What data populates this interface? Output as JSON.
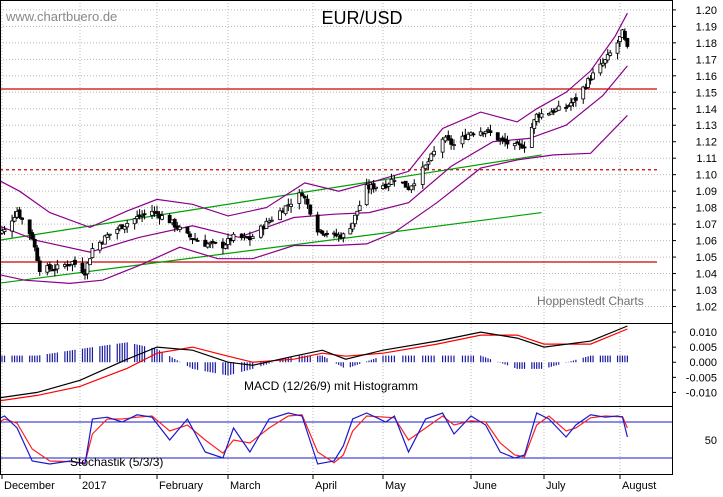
{
  "watermark": "www.chartbuero.de",
  "credit": "Hoppenstedt Charts",
  "colors": {
    "candle": "#000000",
    "bollinger": "#8b008b",
    "trend": "#00a000",
    "horizontal": "#cc0000",
    "macd_line": "#000000",
    "signal_line": "#ff0000",
    "histogram": "#1a1aa0",
    "stoch_k": "#1a1acc",
    "stoch_d": "#ff2020",
    "stoch_level": "#1a1acc",
    "grid": "#b8b8b8"
  },
  "chart_data": [
    {
      "type": "candlestick",
      "title": "EUR/USD",
      "x_labels": [
        "December",
        "2017",
        "February",
        "March",
        "April",
        "May",
        "June",
        "July",
        "August"
      ],
      "y_ticks": [
        1.02,
        1.03,
        1.04,
        1.05,
        1.06,
        1.07,
        1.08,
        1.09,
        1.1,
        1.11,
        1.12,
        1.13,
        1.14,
        1.15,
        1.16,
        1.17,
        1.18,
        1.19,
        1.2
      ],
      "ylim": [
        1.01,
        1.206
      ],
      "grid": true,
      "horizontal_lines": [
        {
          "value": 1.152,
          "style": "solid"
        },
        {
          "value": 1.103,
          "style": "dashed"
        },
        {
          "value": 1.047,
          "style": "solid"
        }
      ],
      "trend_lines": [
        {
          "from": [
            "2016-11-29",
            1.06
          ],
          "to": [
            "2017-06-30",
            1.112
          ]
        },
        {
          "from": [
            "2016-11-29",
            1.034
          ],
          "to": [
            "2017-06-30",
            1.077
          ]
        }
      ],
      "close_anchors": [
        [
          "2016-11-28",
          1.064
        ],
        [
          "2016-12-02",
          1.066
        ],
        [
          "2016-12-07",
          1.078
        ],
        [
          "2016-12-13",
          1.062
        ],
        [
          "2016-12-16",
          1.043
        ],
        [
          "2016-12-22",
          1.043
        ],
        [
          "2016-12-29",
          1.047
        ],
        [
          "2017-01-03",
          1.041
        ],
        [
          "2017-01-06",
          1.055
        ],
        [
          "2017-01-12",
          1.063
        ],
        [
          "2017-01-18",
          1.069
        ],
        [
          "2017-01-24",
          1.074
        ],
        [
          "2017-01-30",
          1.078
        ],
        [
          "2017-02-06",
          1.072
        ],
        [
          "2017-02-13",
          1.063
        ],
        [
          "2017-02-20",
          1.058
        ],
        [
          "2017-02-27",
          1.057
        ],
        [
          "2017-03-03",
          1.062
        ],
        [
          "2017-03-09",
          1.061
        ],
        [
          "2017-03-16",
          1.072
        ],
        [
          "2017-03-23",
          1.082
        ],
        [
          "2017-03-28",
          1.089
        ],
        [
          "2017-04-03",
          1.067
        ],
        [
          "2017-04-10",
          1.063
        ],
        [
          "2017-04-14",
          1.063
        ],
        [
          "2017-04-18",
          1.071
        ],
        [
          "2017-04-24",
          1.092
        ],
        [
          "2017-05-02",
          1.094
        ],
        [
          "2017-05-05",
          1.098
        ],
        [
          "2017-05-10",
          1.092
        ],
        [
          "2017-05-16",
          1.105
        ],
        [
          "2017-05-22",
          1.122
        ],
        [
          "2017-05-26",
          1.118
        ],
        [
          "2017-06-01",
          1.126
        ],
        [
          "2017-06-07",
          1.127
        ],
        [
          "2017-06-13",
          1.121
        ],
        [
          "2017-06-19",
          1.117
        ],
        [
          "2017-06-23",
          1.118
        ],
        [
          "2017-06-28",
          1.136
        ],
        [
          "2017-07-03",
          1.138
        ],
        [
          "2017-07-10",
          1.141
        ],
        [
          "2017-07-14",
          1.146
        ],
        [
          "2017-07-20",
          1.159
        ],
        [
          "2017-07-26",
          1.169
        ],
        [
          "2017-07-31",
          1.18
        ],
        [
          "2017-08-02",
          1.186
        ],
        [
          "2017-08-04",
          1.176
        ]
      ],
      "upper_band_anchors": [
        [
          "2016-11-28",
          1.098
        ],
        [
          "2016-12-08",
          1.09
        ],
        [
          "2016-12-20",
          1.077
        ],
        [
          "2017-01-05",
          1.068
        ],
        [
          "2017-01-20",
          1.078
        ],
        [
          "2017-02-01",
          1.085
        ],
        [
          "2017-02-15",
          1.082
        ],
        [
          "2017-03-01",
          1.075
        ],
        [
          "2017-03-15",
          1.08
        ],
        [
          "2017-03-29",
          1.095
        ],
        [
          "2017-04-12",
          1.09
        ],
        [
          "2017-04-25",
          1.095
        ],
        [
          "2017-05-10",
          1.102
        ],
        [
          "2017-05-22",
          1.128
        ],
        [
          "2017-06-05",
          1.138
        ],
        [
          "2017-06-20",
          1.132
        ],
        [
          "2017-06-28",
          1.14
        ],
        [
          "2017-07-10",
          1.15
        ],
        [
          "2017-07-20",
          1.163
        ],
        [
          "2017-07-30",
          1.184
        ],
        [
          "2017-08-04",
          1.198
        ]
      ],
      "lower_band_anchors": [
        [
          "2016-11-28",
          1.04
        ],
        [
          "2016-12-10",
          1.036
        ],
        [
          "2016-12-28",
          1.034
        ],
        [
          "2017-01-10",
          1.036
        ],
        [
          "2017-01-25",
          1.045
        ],
        [
          "2017-02-10",
          1.056
        ],
        [
          "2017-02-25",
          1.049
        ],
        [
          "2017-03-10",
          1.049
        ],
        [
          "2017-03-25",
          1.057
        ],
        [
          "2017-04-10",
          1.057
        ],
        [
          "2017-04-24",
          1.058
        ],
        [
          "2017-05-05",
          1.065
        ],
        [
          "2017-05-20",
          1.083
        ],
        [
          "2017-06-05",
          1.104
        ],
        [
          "2017-06-20",
          1.109
        ],
        [
          "2017-07-05",
          1.112
        ],
        [
          "2017-07-20",
          1.113
        ],
        [
          "2017-08-04",
          1.136
        ]
      ],
      "middle_band_anchors": [
        [
          "2016-11-28",
          1.07
        ],
        [
          "2016-12-15",
          1.06
        ],
        [
          "2017-01-05",
          1.053
        ],
        [
          "2017-01-25",
          1.062
        ],
        [
          "2017-02-15",
          1.069
        ],
        [
          "2017-03-05",
          1.062
        ],
        [
          "2017-03-25",
          1.074
        ],
        [
          "2017-04-10",
          1.076
        ],
        [
          "2017-04-25",
          1.077
        ],
        [
          "2017-05-10",
          1.083
        ],
        [
          "2017-05-25",
          1.105
        ],
        [
          "2017-06-10",
          1.12
        ],
        [
          "2017-06-25",
          1.122
        ],
        [
          "2017-07-10",
          1.13
        ],
        [
          "2017-07-25",
          1.148
        ],
        [
          "2017-08-04",
          1.166
        ]
      ]
    },
    {
      "type": "line",
      "title": "MACD (12/26/9) mit Histogramm",
      "y_ticks": [
        0.01,
        0.005,
        0.0,
        -0.005,
        -0.01
      ],
      "y_tick_labels": [
        "0.010",
        "0.005",
        "0.000",
        "-0.005",
        "-0.010"
      ],
      "ylim": [
        -0.0145,
        0.013
      ],
      "series": [
        {
          "key": "macd",
          "values": [
            [
              "2016-11-28",
              -0.012
            ],
            [
              "2016-12-15",
              -0.01
            ],
            [
              "2017-01-01",
              -0.006
            ],
            [
              "2017-01-20",
              0.001
            ],
            [
              "2017-02-01",
              0.005
            ],
            [
              "2017-02-15",
              0.004
            ],
            [
              "2017-03-01",
              0.0
            ],
            [
              "2017-03-10",
              -0.001
            ],
            [
              "2017-03-25",
              0.002
            ],
            [
              "2017-04-05",
              0.004
            ],
            [
              "2017-04-15",
              0.001
            ],
            [
              "2017-05-01",
              0.004
            ],
            [
              "2017-05-20",
              0.007
            ],
            [
              "2017-06-05",
              0.01
            ],
            [
              "2017-06-20",
              0.008
            ],
            [
              "2017-07-01",
              0.005
            ],
            [
              "2017-07-20",
              0.007
            ],
            [
              "2017-08-04",
              0.012
            ]
          ]
        },
        {
          "key": "signal",
          "values": [
            [
              "2016-11-28",
              -0.013
            ],
            [
              "2016-12-15",
              -0.011
            ],
            [
              "2017-01-01",
              -0.008
            ],
            [
              "2017-01-20",
              -0.002
            ],
            [
              "2017-02-01",
              0.003
            ],
            [
              "2017-02-15",
              0.005
            ],
            [
              "2017-03-01",
              0.002
            ],
            [
              "2017-03-10",
              0.0
            ],
            [
              "2017-03-25",
              0.001
            ],
            [
              "2017-04-05",
              0.003
            ],
            [
              "2017-04-15",
              0.002
            ],
            [
              "2017-05-01",
              0.003
            ],
            [
              "2017-05-20",
              0.006
            ],
            [
              "2017-06-05",
              0.009
            ],
            [
              "2017-06-20",
              0.009
            ],
            [
              "2017-07-01",
              0.006
            ],
            [
              "2017-07-20",
              0.006
            ],
            [
              "2017-08-04",
              0.011
            ]
          ]
        }
      ]
    },
    {
      "type": "line",
      "title": "Stochastik (5/3/3)",
      "y_ticks": [
        50
      ],
      "ylim": [
        0,
        100
      ],
      "levels": [
        80,
        20
      ],
      "series": [
        {
          "key": "k",
          "values": [
            [
              "2016-11-28",
              82
            ],
            [
              "2016-12-02",
              90
            ],
            [
              "2016-12-07",
              70
            ],
            [
              "2016-12-13",
              15
            ],
            [
              "2016-12-20",
              10
            ],
            [
              "2016-12-28",
              15
            ],
            [
              "2017-01-03",
              10
            ],
            [
              "2017-01-06",
              85
            ],
            [
              "2017-01-12",
              88
            ],
            [
              "2017-01-18",
              80
            ],
            [
              "2017-01-24",
              92
            ],
            [
              "2017-01-30",
              88
            ],
            [
              "2017-02-06",
              50
            ],
            [
              "2017-02-13",
              85
            ],
            [
              "2017-02-20",
              30
            ],
            [
              "2017-02-27",
              20
            ],
            [
              "2017-03-03",
              70
            ],
            [
              "2017-03-09",
              30
            ],
            [
              "2017-03-16",
              85
            ],
            [
              "2017-03-23",
              95
            ],
            [
              "2017-03-28",
              90
            ],
            [
              "2017-04-03",
              10
            ],
            [
              "2017-04-10",
              15
            ],
            [
              "2017-04-14",
              40
            ],
            [
              "2017-04-18",
              85
            ],
            [
              "2017-04-24",
              95
            ],
            [
              "2017-05-02",
              80
            ],
            [
              "2017-05-05",
              90
            ],
            [
              "2017-05-10",
              30
            ],
            [
              "2017-05-16",
              85
            ],
            [
              "2017-05-22",
              95
            ],
            [
              "2017-05-26",
              60
            ],
            [
              "2017-06-01",
              90
            ],
            [
              "2017-06-07",
              75
            ],
            [
              "2017-06-13",
              30
            ],
            [
              "2017-06-19",
              20
            ],
            [
              "2017-06-23",
              25
            ],
            [
              "2017-06-28",
              95
            ],
            [
              "2017-07-03",
              85
            ],
            [
              "2017-07-10",
              55
            ],
            [
              "2017-07-14",
              75
            ],
            [
              "2017-07-20",
              92
            ],
            [
              "2017-07-26",
              88
            ],
            [
              "2017-07-31",
              90
            ],
            [
              "2017-08-02",
              88
            ],
            [
              "2017-08-04",
              55
            ]
          ]
        },
        {
          "key": "d",
          "values": [
            [
              "2016-11-28",
              75
            ],
            [
              "2016-12-02",
              85
            ],
            [
              "2016-12-07",
              78
            ],
            [
              "2016-12-13",
              35
            ],
            [
              "2016-12-20",
              15
            ],
            [
              "2016-12-28",
              14
            ],
            [
              "2017-01-03",
              12
            ],
            [
              "2017-01-06",
              60
            ],
            [
              "2017-01-12",
              85
            ],
            [
              "2017-01-18",
              85
            ],
            [
              "2017-01-24",
              88
            ],
            [
              "2017-01-30",
              90
            ],
            [
              "2017-02-06",
              65
            ],
            [
              "2017-02-13",
              75
            ],
            [
              "2017-02-20",
              50
            ],
            [
              "2017-02-27",
              28
            ],
            [
              "2017-03-03",
              50
            ],
            [
              "2017-03-09",
              45
            ],
            [
              "2017-03-16",
              70
            ],
            [
              "2017-03-23",
              90
            ],
            [
              "2017-03-28",
              92
            ],
            [
              "2017-04-03",
              30
            ],
            [
              "2017-04-10",
              12
            ],
            [
              "2017-04-14",
              25
            ],
            [
              "2017-04-18",
              65
            ],
            [
              "2017-04-24",
              90
            ],
            [
              "2017-05-02",
              88
            ],
            [
              "2017-05-05",
              87
            ],
            [
              "2017-05-10",
              50
            ],
            [
              "2017-05-16",
              70
            ],
            [
              "2017-05-22",
              90
            ],
            [
              "2017-05-26",
              75
            ],
            [
              "2017-06-01",
              82
            ],
            [
              "2017-06-07",
              80
            ],
            [
              "2017-06-13",
              45
            ],
            [
              "2017-06-19",
              25
            ],
            [
              "2017-06-23",
              22
            ],
            [
              "2017-06-28",
              75
            ],
            [
              "2017-07-03",
              90
            ],
            [
              "2017-07-10",
              65
            ],
            [
              "2017-07-14",
              70
            ],
            [
              "2017-07-20",
              87
            ],
            [
              "2017-07-26",
              90
            ],
            [
              "2017-07-31",
              89
            ],
            [
              "2017-08-02",
              89
            ],
            [
              "2017-08-04",
              70
            ]
          ]
        }
      ]
    }
  ]
}
